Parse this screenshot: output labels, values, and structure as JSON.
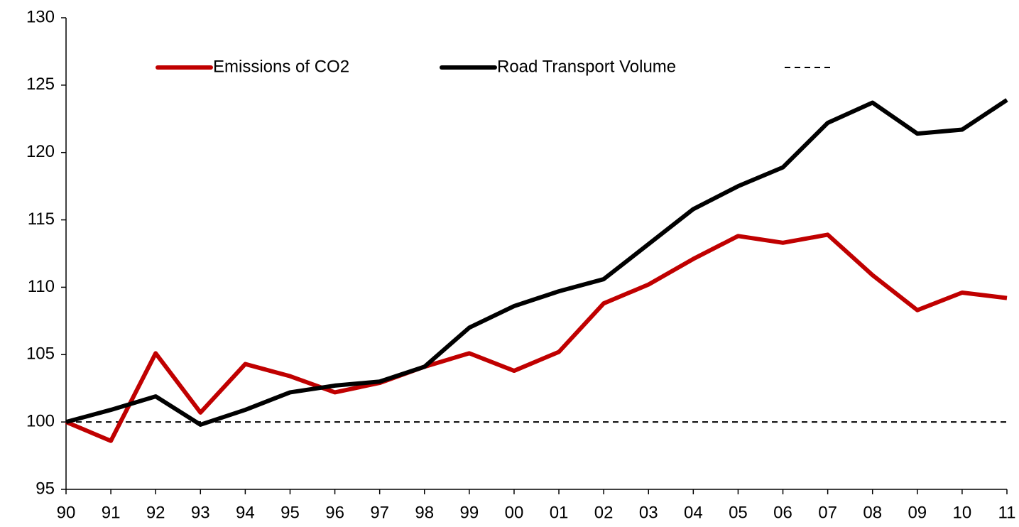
{
  "chart_data": {
    "type": "line",
    "categories": [
      "90",
      "91",
      "92",
      "93",
      "94",
      "95",
      "96",
      "97",
      "98",
      "99",
      "00",
      "01",
      "02",
      "03",
      "04",
      "05",
      "06",
      "07",
      "08",
      "09",
      "10",
      "11"
    ],
    "series": [
      {
        "name": "Emissions of CO2",
        "color": "#c00000",
        "values": [
          100,
          98.6,
          105.1,
          100.7,
          104.3,
          103.4,
          102.2,
          102.9,
          104.1,
          105.1,
          103.8,
          105.2,
          108.8,
          110.2,
          112.1,
          113.8,
          113.3,
          113.9,
          110.9,
          108.3,
          109.6,
          109.2
        ]
      },
      {
        "name": "Road Transport Volume",
        "color": "#000000",
        "values": [
          100,
          100.9,
          101.9,
          99.8,
          100.9,
          102.2,
          102.7,
          103.0,
          104.1,
          107.0,
          108.6,
          109.7,
          110.6,
          113.2,
          115.8,
          117.5,
          118.9,
          122.2,
          123.7,
          121.4,
          121.7,
          123.9
        ]
      }
    ],
    "reference_line": {
      "value": 100,
      "style": "dashed",
      "color": "#000000"
    },
    "ylim": [
      95,
      130
    ],
    "yticks": [
      95,
      100,
      105,
      110,
      115,
      120,
      125,
      130
    ],
    "grid": false,
    "legend": "top"
  }
}
